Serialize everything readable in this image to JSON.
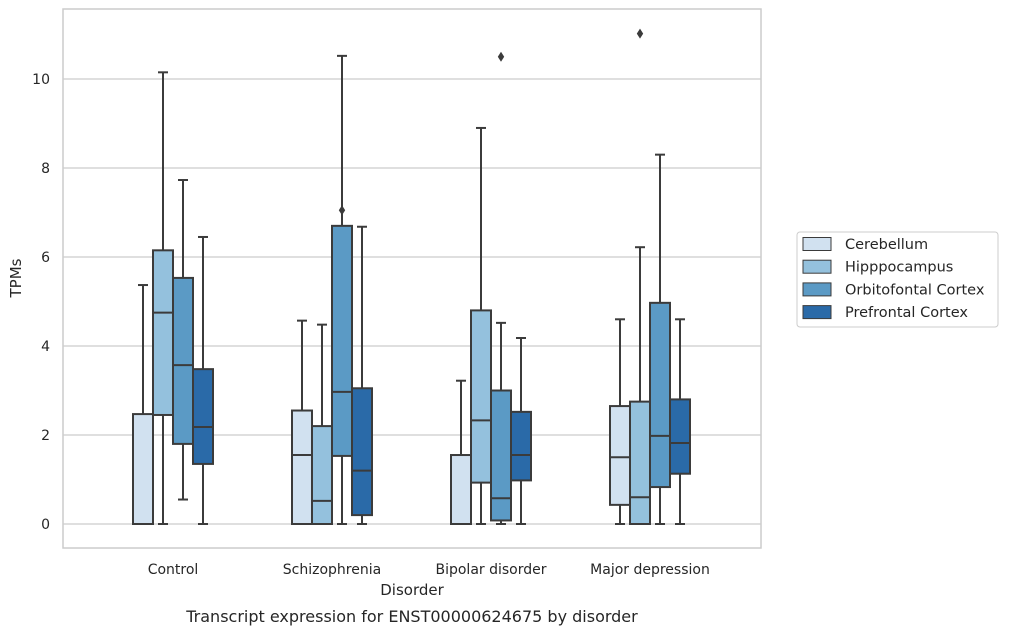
{
  "chart_data": {
    "type": "box",
    "caption": "Transcript expression for ENST00000624675 by disorder",
    "xlabel": "Disorder",
    "ylabel": "TPMs",
    "ylim": [
      -0.5,
      11.6
    ],
    "yticks": [
      0,
      2,
      4,
      6,
      8,
      10
    ],
    "grid": true,
    "legend_position": "right",
    "categories": [
      "Control",
      "Schizophrenia",
      "Bipolar disorder",
      "Major depression"
    ],
    "series": [
      {
        "name": "Cerebellum",
        "color": "#d1e1f0",
        "boxes": [
          {
            "whislo": 0,
            "q1": 0,
            "med": 0,
            "q3": 2.47,
            "whishi": 5.37,
            "fliers": []
          },
          {
            "whislo": 0,
            "q1": 0,
            "med": 1.55,
            "q3": 2.55,
            "whishi": 4.57,
            "fliers": []
          },
          {
            "whislo": 0,
            "q1": 0,
            "med": 0,
            "q3": 1.55,
            "whishi": 3.22,
            "fliers": []
          },
          {
            "whislo": 0,
            "q1": 0.43,
            "med": 1.5,
            "q3": 2.65,
            "whishi": 4.6,
            "fliers": []
          }
        ]
      },
      {
        "name": "Hipppocampus",
        "color": "#94c1dd",
        "boxes": [
          {
            "whislo": 0,
            "q1": 2.45,
            "med": 4.75,
            "q3": 6.15,
            "whishi": 10.15,
            "fliers": []
          },
          {
            "whislo": 0,
            "q1": 0,
            "med": 0.52,
            "q3": 2.2,
            "whishi": 4.48,
            "fliers": []
          },
          {
            "whislo": 0,
            "q1": 0.93,
            "med": 2.33,
            "q3": 4.8,
            "whishi": 8.9,
            "fliers": []
          },
          {
            "whislo": 0,
            "q1": 0,
            "med": 0.6,
            "q3": 2.75,
            "whishi": 6.22,
            "fliers": [
              11.02
            ]
          }
        ]
      },
      {
        "name": "Orbitofontal Cortex",
        "color": "#5b9ac5",
        "boxes": [
          {
            "whislo": 0.55,
            "q1": 1.8,
            "med": 3.57,
            "q3": 5.53,
            "whishi": 7.73,
            "fliers": []
          },
          {
            "whislo": 0,
            "q1": 1.53,
            "med": 2.97,
            "q3": 6.7,
            "whishi": 10.52,
            "fliers": [
              7.05
            ]
          },
          {
            "whislo": 0,
            "q1": 0.08,
            "med": 0.58,
            "q3": 3.0,
            "whishi": 4.52,
            "fliers": [
              10.5
            ]
          },
          {
            "whislo": 0,
            "q1": 0.83,
            "med": 1.98,
            "q3": 4.97,
            "whishi": 8.3,
            "fliers": []
          }
        ]
      },
      {
        "name": "Prefrontal Cortex",
        "color": "#2a6aa8",
        "boxes": [
          {
            "whislo": 0,
            "q1": 1.35,
            "med": 2.18,
            "q3": 3.48,
            "whishi": 6.45,
            "fliers": []
          },
          {
            "whislo": 0,
            "q1": 0.2,
            "med": 1.2,
            "q3": 3.05,
            "whishi": 6.68,
            "fliers": []
          },
          {
            "whislo": 0,
            "q1": 0.98,
            "med": 1.55,
            "q3": 2.52,
            "whishi": 4.18,
            "fliers": []
          },
          {
            "whislo": 0,
            "q1": 1.13,
            "med": 1.82,
            "q3": 2.8,
            "whishi": 4.6,
            "fliers": []
          }
        ]
      }
    ]
  }
}
